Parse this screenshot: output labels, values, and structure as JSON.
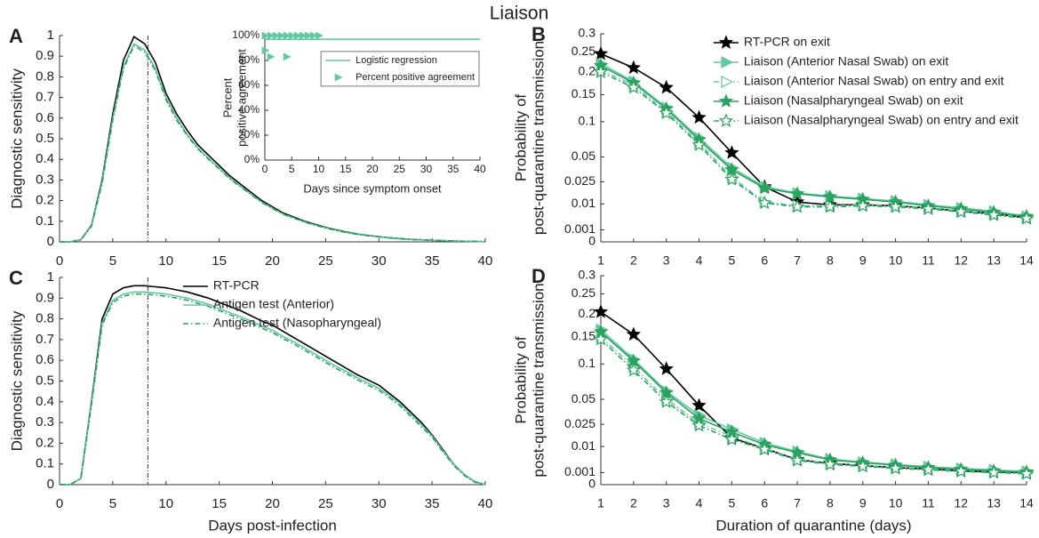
{
  "title": "Liaison",
  "chart_data": [
    {
      "type": "line",
      "panel": "A",
      "ylabel": "Diagnostic sensitivity",
      "x": [
        0,
        1,
        2,
        3,
        4,
        5,
        6,
        7,
        8,
        9,
        10,
        11,
        12,
        13,
        14,
        15,
        16,
        17,
        18,
        19,
        20,
        21,
        22,
        23,
        24,
        25,
        26,
        27,
        28,
        29,
        30,
        31,
        32,
        33,
        34,
        35,
        36,
        37,
        38,
        39,
        40
      ],
      "xlim": [
        0,
        40
      ],
      "xticks": [
        0,
        5,
        10,
        15,
        20,
        25,
        30,
        35,
        40
      ],
      "ylim": [
        0,
        1
      ],
      "yticks": [
        0,
        0.1,
        0.2,
        0.3,
        0.4,
        0.5,
        0.6,
        0.7,
        0.8,
        0.9,
        1
      ],
      "vline": 8.3,
      "series": [
        {
          "color": "#000000",
          "dash": false,
          "values": [
            0,
            0,
            0.01,
            0.08,
            0.3,
            0.62,
            0.88,
            0.995,
            0.96,
            0.87,
            0.72,
            0.62,
            0.54,
            0.47,
            0.42,
            0.37,
            0.32,
            0.28,
            0.24,
            0.2,
            0.17,
            0.14,
            0.12,
            0.1,
            0.085,
            0.07,
            0.058,
            0.047,
            0.038,
            0.031,
            0.025,
            0.02,
            0.016,
            0.012,
            0.01,
            0.008,
            0.006,
            0.004,
            0.003,
            0.002,
            0.001
          ]
        },
        {
          "color": "#5fc9a0",
          "dash": false,
          "values": [
            0,
            0,
            0.01,
            0.077,
            0.29,
            0.6,
            0.85,
            0.96,
            0.93,
            0.84,
            0.7,
            0.6,
            0.52,
            0.455,
            0.405,
            0.357,
            0.309,
            0.27,
            0.232,
            0.193,
            0.164,
            0.135,
            0.116,
            0.097,
            0.082,
            0.068,
            0.056,
            0.045,
            0.037,
            0.03,
            0.024,
            0.019,
            0.015,
            0.012,
            0.01,
            0.008,
            0.006,
            0.004,
            0.003,
            0.002,
            0.001
          ]
        },
        {
          "color": "#2ca25f",
          "dash": true,
          "values": [
            0,
            0,
            0.01,
            0.076,
            0.285,
            0.59,
            0.84,
            0.95,
            0.92,
            0.83,
            0.69,
            0.59,
            0.515,
            0.45,
            0.4,
            0.353,
            0.306,
            0.267,
            0.229,
            0.191,
            0.162,
            0.134,
            0.115,
            0.096,
            0.081,
            0.067,
            0.055,
            0.045,
            0.036,
            0.03,
            0.024,
            0.019,
            0.015,
            0.011,
            0.01,
            0.008,
            0.006,
            0.004,
            0.003,
            0.002,
            0.001
          ]
        }
      ]
    },
    {
      "type": "line",
      "xlabel": "Days since symptom onset",
      "ylabel": [
        "Percent",
        "positive agreement"
      ],
      "xlim": [
        0,
        40
      ],
      "xticks": [
        0,
        5,
        10,
        15,
        20,
        25,
        30,
        35,
        40
      ],
      "ylim": [
        0,
        100
      ],
      "yticks": [
        {
          "value": 0,
          "label": "0%"
        },
        {
          "value": 20,
          "label": "20%"
        },
        {
          "value": 40,
          "label": "40%"
        },
        {
          "value": 60,
          "label": "60%"
        },
        {
          "value": 80,
          "label": "80%"
        },
        {
          "value": 100,
          "label": "100%"
        }
      ],
      "legend": "upper right",
      "legend_box": true,
      "series": [
        {
          "name": "Logistic regression",
          "color": "#5fc9a0",
          "dash": false,
          "x": [
            0,
            40
          ],
          "values": [
            97,
            97
          ]
        },
        {
          "name": "Percent positive agreement",
          "color": "#5fc9a0",
          "line": false,
          "marker": "triangle",
          "x": [
            0,
            0,
            1,
            1,
            2,
            3,
            4,
            4,
            5,
            6,
            7,
            8,
            9,
            10
          ],
          "values": [
            100,
            88,
            100,
            83,
            100,
            100,
            100,
            83,
            100,
            100,
            100,
            100,
            100,
            100
          ]
        }
      ]
    },
    {
      "type": "line",
      "panel": "B",
      "ylabel": [
        "Probability of",
        "post-quarantine transmission"
      ],
      "x": [
        1,
        2,
        3,
        4,
        5,
        6,
        7,
        8,
        9,
        10,
        11,
        12,
        13,
        14
      ],
      "xlim": [
        1,
        14
      ],
      "xticks": [
        1,
        2,
        3,
        4,
        5,
        6,
        7,
        8,
        9,
        10,
        11,
        12,
        13,
        14
      ],
      "ylim": [
        0,
        0.3
      ],
      "yscale": "sqrt",
      "yticks": [
        0,
        0.001,
        0.01,
        0.025,
        0.05,
        0.1,
        0.15,
        0.2,
        0.25,
        0.3
      ],
      "legend": "upper right",
      "series": [
        {
          "name": "RT-PCR on exit",
          "color": "#000000",
          "dash": false,
          "marker": "star",
          "values": [
            0.245,
            0.21,
            0.165,
            0.107,
            0.055,
            0.021,
            0.011,
            0.0095,
            0.0095,
            0.009,
            0.008,
            0.0065,
            0.0055,
            0.004
          ]
        },
        {
          "name": "Liaison (Anterior Nasal Swab) on exit",
          "color": "#5fc9a0",
          "dash": false,
          "marker": "triangle",
          "values": [
            0.22,
            0.178,
            0.125,
            0.075,
            0.038,
            0.021,
            0.0165,
            0.0145,
            0.013,
            0.0115,
            0.0095,
            0.008,
            0.0065,
            0.0045
          ]
        },
        {
          "name": "Liaison (Anterior Nasal Swab) on entry and exit",
          "color": "#5fc9a0",
          "dash": true,
          "marker": "triangle-open",
          "values": [
            0.205,
            0.17,
            0.118,
            0.068,
            0.029,
            0.011,
            0.009,
            0.009,
            0.0095,
            0.009,
            0.008,
            0.0065,
            0.0055,
            0.004
          ]
        },
        {
          "name": "Liaison (Nasalpharyngeal Swab) on exit",
          "color": "#2ca25f",
          "dash": false,
          "marker": "star",
          "values": [
            0.215,
            0.175,
            0.123,
            0.072,
            0.036,
            0.02,
            0.016,
            0.014,
            0.0125,
            0.011,
            0.009,
            0.0075,
            0.006,
            0.0045
          ]
        },
        {
          "name": "Liaison (Nasalpharyngeal Swab) on entry and exit",
          "color": "#2ca25f",
          "dash": true,
          "marker": "star-open",
          "values": [
            0.2,
            0.165,
            0.115,
            0.065,
            0.027,
            0.0105,
            0.0085,
            0.0085,
            0.009,
            0.0085,
            0.0075,
            0.0062,
            0.005,
            0.0038
          ]
        }
      ]
    },
    {
      "type": "line",
      "panel": "C",
      "ylabel": "Diagnostic sensitivity",
      "xlabel": "Days post-infection",
      "x": [
        0,
        1,
        2,
        3,
        4,
        5,
        6,
        7,
        8,
        9,
        10,
        11,
        12,
        13,
        14,
        15,
        16,
        17,
        18,
        19,
        20,
        21,
        22,
        23,
        24,
        25,
        26,
        27,
        28,
        29,
        30,
        31,
        32,
        33,
        34,
        35,
        36,
        37,
        38,
        39,
        40
      ],
      "xlim": [
        0,
        40
      ],
      "xticks": [
        0,
        5,
        10,
        15,
        20,
        25,
        30,
        35,
        40
      ],
      "ylim": [
        0,
        1
      ],
      "yticks": [
        0,
        0.1,
        0.2,
        0.3,
        0.4,
        0.5,
        0.6,
        0.7,
        0.8,
        0.9,
        1
      ],
      "vline": 8.3,
      "legend": "upper center",
      "series": [
        {
          "name": "RT-PCR",
          "color": "#000000",
          "dash": false,
          "values": [
            0,
            0,
            0.03,
            0.4,
            0.8,
            0.92,
            0.95,
            0.96,
            0.96,
            0.955,
            0.95,
            0.94,
            0.93,
            0.915,
            0.9,
            0.88,
            0.86,
            0.84,
            0.815,
            0.79,
            0.77,
            0.74,
            0.71,
            0.68,
            0.65,
            0.62,
            0.59,
            0.56,
            0.53,
            0.505,
            0.48,
            0.44,
            0.4,
            0.35,
            0.3,
            0.24,
            0.17,
            0.1,
            0.05,
            0.015,
            0
          ]
        },
        {
          "name": "Antigen test (Anterior)",
          "color": "#5fc9a0",
          "dash": false,
          "values": [
            0,
            0,
            0.03,
            0.39,
            0.78,
            0.89,
            0.92,
            0.93,
            0.93,
            0.925,
            0.92,
            0.91,
            0.9,
            0.885,
            0.87,
            0.85,
            0.83,
            0.81,
            0.79,
            0.765,
            0.745,
            0.715,
            0.69,
            0.66,
            0.63,
            0.6,
            0.57,
            0.545,
            0.515,
            0.49,
            0.465,
            0.43,
            0.39,
            0.34,
            0.29,
            0.235,
            0.165,
            0.1,
            0.05,
            0.015,
            0
          ]
        },
        {
          "name": "Antigen test (Nasopharyngeal)",
          "color": "#2ca25f",
          "dash": true,
          "values": [
            0,
            0,
            0.03,
            0.385,
            0.77,
            0.88,
            0.91,
            0.92,
            0.92,
            0.915,
            0.91,
            0.9,
            0.89,
            0.875,
            0.86,
            0.84,
            0.82,
            0.8,
            0.78,
            0.755,
            0.735,
            0.705,
            0.68,
            0.65,
            0.62,
            0.59,
            0.56,
            0.535,
            0.505,
            0.48,
            0.455,
            0.42,
            0.38,
            0.33,
            0.28,
            0.23,
            0.16,
            0.095,
            0.045,
            0.012,
            0
          ]
        }
      ]
    },
    {
      "type": "line",
      "panel": "D",
      "ylabel": [
        "Probability of",
        "post-quarantine transmission"
      ],
      "xlabel": "Duration of quarantine (days)",
      "x": [
        1,
        2,
        3,
        4,
        5,
        6,
        7,
        8,
        9,
        10,
        11,
        12,
        13,
        14
      ],
      "xlim": [
        1,
        14
      ],
      "xticks": [
        1,
        2,
        3,
        4,
        5,
        6,
        7,
        8,
        9,
        10,
        11,
        12,
        13,
        14
      ],
      "ylim": [
        0,
        0.3
      ],
      "yscale": "sqrt",
      "yticks": [
        0,
        0.001,
        0.01,
        0.025,
        0.05,
        0.1,
        0.15,
        0.2,
        0.25,
        0.3
      ],
      "series": [
        {
          "color": "#000000",
          "dash": false,
          "marker": "star",
          "values": [
            0.205,
            0.155,
            0.092,
            0.043,
            0.015,
            0.009,
            0.0043,
            0.0031,
            0.0025,
            0.002,
            0.0017,
            0.0013,
            0.0011,
            0.001
          ]
        },
        {
          "color": "#5fc9a0",
          "dash": false,
          "marker": "triangle",
          "values": [
            0.165,
            0.108,
            0.06,
            0.033,
            0.021,
            0.012,
            0.0075,
            0.0045,
            0.0035,
            0.0028,
            0.0022,
            0.0018,
            0.0015,
            0.0012
          ]
        },
        {
          "color": "#5fc9a0",
          "dash": true,
          "marker": "triangle-open",
          "values": [
            0.15,
            0.095,
            0.05,
            0.026,
            0.016,
            0.009,
            0.0045,
            0.003,
            0.0025,
            0.002,
            0.0017,
            0.0014,
            0.0012,
            0.0009
          ]
        },
        {
          "color": "#2ca25f",
          "dash": false,
          "marker": "star",
          "values": [
            0.16,
            0.105,
            0.058,
            0.03,
            0.019,
            0.011,
            0.007,
            0.0042,
            0.0033,
            0.0026,
            0.002,
            0.0016,
            0.0013,
            0.0011
          ]
        },
        {
          "color": "#2ca25f",
          "dash": true,
          "marker": "star-open",
          "values": [
            0.145,
            0.09,
            0.047,
            0.024,
            0.014,
            0.0085,
            0.004,
            0.0028,
            0.0023,
            0.0018,
            0.0015,
            0.0012,
            0.001,
            0.0008
          ]
        }
      ]
    }
  ]
}
